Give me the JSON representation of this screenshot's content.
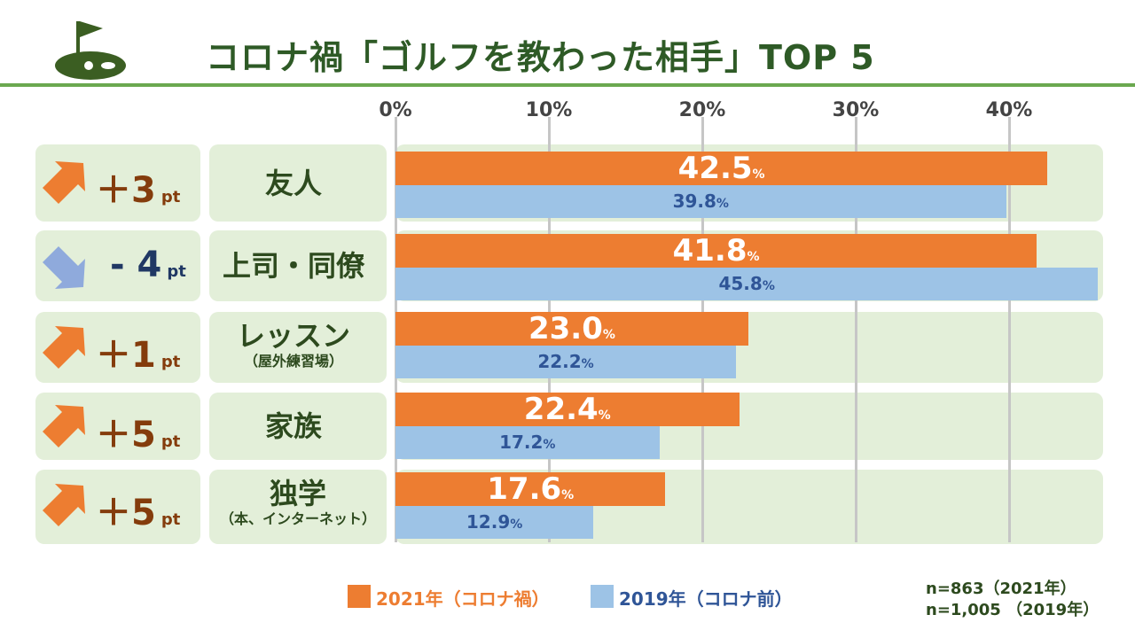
{
  "title": "コロナ禍「ゴルフを教わった相手」TOP 5",
  "chart_data": {
    "type": "bar",
    "orientation": "horizontal",
    "title": "コロナ禍「ゴルフを教わった相手」TOP 5",
    "x_ticks": [
      "0%",
      "10%",
      "20%",
      "30%",
      "40%"
    ],
    "xlim": [
      0,
      45
    ],
    "categories": [
      {
        "name": "友人",
        "sub": ""
      },
      {
        "name": "上司・同僚",
        "sub": ""
      },
      {
        "name": "レッスン",
        "sub": "（屋外練習場）"
      },
      {
        "name": "家族",
        "sub": ""
      },
      {
        "name": "独学",
        "sub": "（本、インターネット）"
      }
    ],
    "series": [
      {
        "name": "2021年（コロナ禍）",
        "color": "#ed7d31",
        "values": [
          42.5,
          41.8,
          23.0,
          22.4,
          17.6
        ],
        "labels": [
          "42.5",
          "41.8",
          "23.0",
          "22.4",
          "17.6"
        ]
      },
      {
        "name": "2019年（コロナ前）",
        "color": "#9dc3e6",
        "values": [
          39.8,
          45.8,
          22.2,
          17.2,
          12.9
        ],
        "labels": [
          "39.8",
          "45.8",
          "22.2",
          "17.2",
          "12.9"
        ]
      }
    ],
    "percent_sign": "%",
    "changes": [
      {
        "sign": "＋",
        "value": "3",
        "unit": "pt",
        "direction": "up"
      },
      {
        "sign": "-",
        "value": "4",
        "unit": "pt",
        "direction": "down"
      },
      {
        "sign": "＋",
        "value": "1",
        "unit": "pt",
        "direction": "up"
      },
      {
        "sign": "＋",
        "value": "5",
        "unit": "pt",
        "direction": "up"
      },
      {
        "sign": "＋",
        "value": "5",
        "unit": "pt",
        "direction": "up"
      }
    ],
    "legend": [
      {
        "label": "2021年（コロナ禍）",
        "color": "#ed7d31"
      },
      {
        "label": "2019年（コロナ前）",
        "color": "#9dc3e6"
      }
    ],
    "sample_notes": [
      "n=863（2021年）",
      "n=1,005 （2019年）"
    ]
  },
  "colors": {
    "up": "#ed7d31",
    "down": "#8faadc",
    "up_text": "#843c0c",
    "down_text": "#203864",
    "title": "#2e5a26",
    "panel": "#e3efd9"
  },
  "icons": {
    "logo": "golf-flag-icon"
  }
}
